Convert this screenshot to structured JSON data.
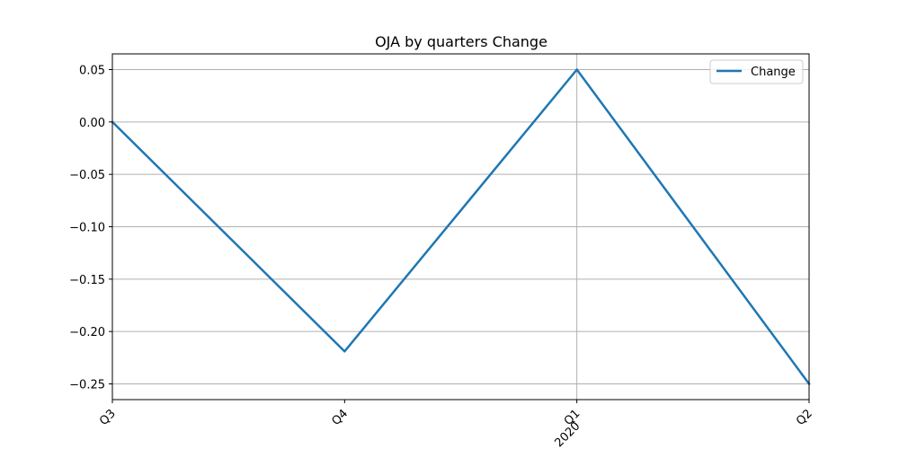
{
  "chart_data": {
    "type": "line",
    "title": "OJA by quarters Change",
    "xlabel": "",
    "ylabel": "",
    "categories": [
      "Q3",
      "Q4",
      "Q1",
      "Q2"
    ],
    "year_labels": [
      "",
      "",
      "2020",
      ""
    ],
    "series": [
      {
        "name": "Change",
        "values": [
          0.0,
          -0.219,
          0.05,
          -0.25
        ]
      }
    ],
    "ylim": [
      -0.265,
      0.065
    ],
    "yticks": [
      0.05,
      0.0,
      -0.05,
      -0.1,
      -0.15,
      -0.2,
      -0.25
    ],
    "ytick_labels": [
      "0.05",
      "0.00",
      "−0.05",
      "−0.10",
      "−0.15",
      "−0.20",
      "−0.25"
    ],
    "grid": true,
    "legend_position": "top-right",
    "line_color": "#1f77b4"
  }
}
